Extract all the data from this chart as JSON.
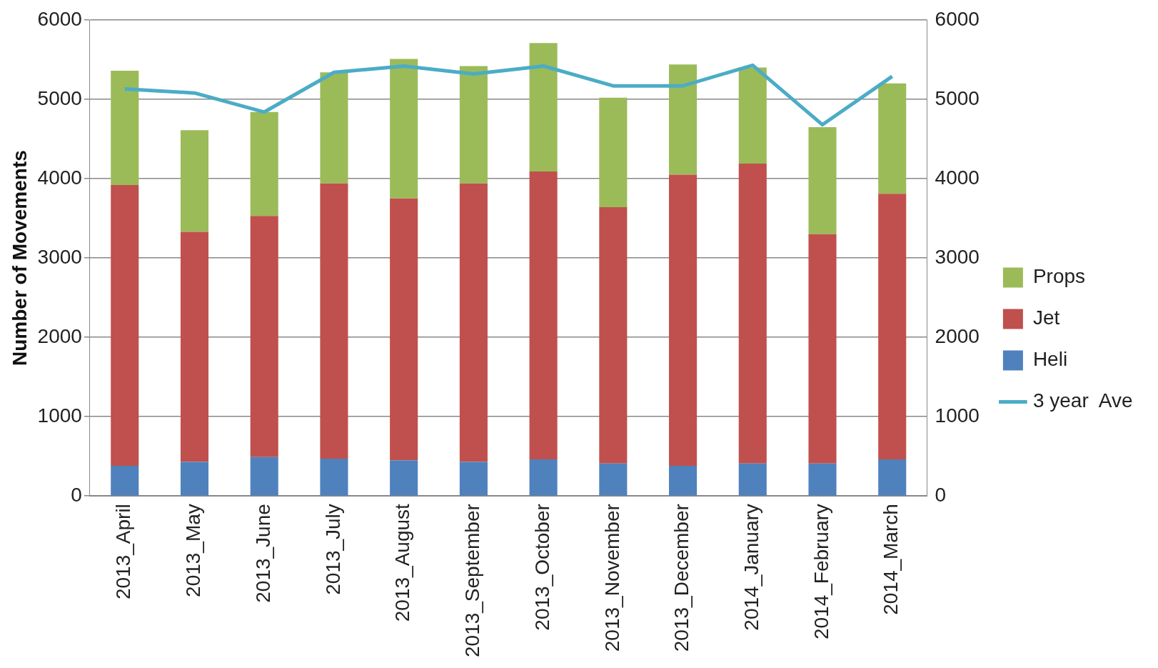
{
  "chart_data": {
    "type": "bar",
    "ylabel": "Number of Movements",
    "stacked": true,
    "grid": "y",
    "legend": "right",
    "categories": [
      "2013_April",
      "2013_May",
      "2013_June",
      "2013_July",
      "2013_August",
      "2013_September",
      "2013_October",
      "2013_November",
      "2013_December",
      "2014_January",
      "2014_February",
      "2014_March"
    ],
    "ylim": [
      0,
      6000
    ],
    "yticks": [
      0,
      1000,
      2000,
      3000,
      4000,
      5000,
      6000
    ],
    "y2lim": [
      0,
      6000
    ],
    "y2ticks": [
      0,
      1000,
      2000,
      3000,
      4000,
      5000,
      6000
    ],
    "series": [
      {
        "name": "Heli",
        "color": "#4f81bd",
        "values": [
          380,
          430,
          490,
          470,
          450,
          430,
          460,
          410,
          380,
          410,
          410,
          460
        ]
      },
      {
        "name": "Jet",
        "color": "#c0504d",
        "values": [
          3540,
          2900,
          3040,
          3470,
          3300,
          3510,
          3630,
          3230,
          3670,
          3780,
          2890,
          3350
        ]
      },
      {
        "name": "Props",
        "color": "#9bbb59",
        "values": [
          1440,
          1280,
          1310,
          1400,
          1760,
          1480,
          1620,
          1380,
          1390,
          1210,
          1350,
          1390
        ]
      },
      {
        "name": "3 year  Ave",
        "type": "line",
        "color": "#4bacc6",
        "marker": "none",
        "line_style": "solid",
        "values": [
          5130,
          5080,
          4840,
          5340,
          5420,
          5320,
          5420,
          5170,
          5170,
          5430,
          4680,
          5290
        ]
      }
    ]
  }
}
